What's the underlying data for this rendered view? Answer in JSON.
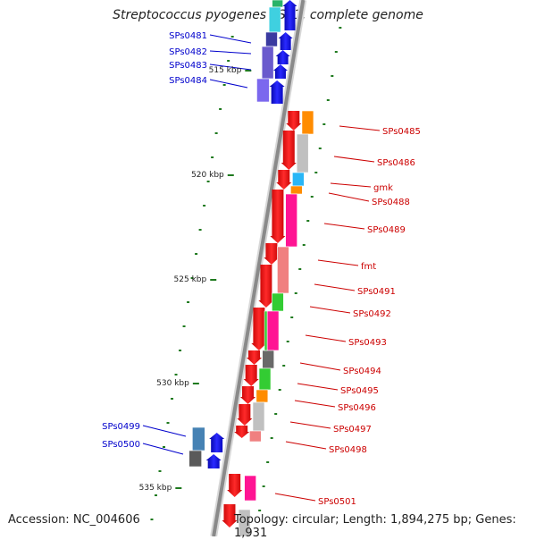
{
  "title": "Streptococcus pyogenes SSI-1, complete genome",
  "footer": {
    "accession": "Accession: NC_004606",
    "summary": "Topology: circular; Length: 1,894,275 bp; Genes: 1,931"
  },
  "colors": {
    "backbone": "#8a8a8a",
    "tick": "#1f7a1f",
    "forward_label": "#0000cc",
    "reverse_label": "#cc0000"
  },
  "scale_labels": [
    "515 kbp",
    "520 kbp",
    "525 kbp",
    "530 kbp",
    "535 kbp"
  ],
  "forward_genes": [
    "SPs0481",
    "SPs0482",
    "SPs0483",
    "SPs0484",
    "SPs0499",
    "SPs0500"
  ],
  "reverse_genes": [
    "SPs0485",
    "SPs0486",
    "gmk",
    "SPs0488",
    "SPs0489",
    "fmt",
    "SPs0491",
    "SPs0492",
    "SPs0493",
    "SPs0494",
    "SPs0495",
    "SPs0496",
    "SPs0497",
    "SPs0498",
    "SPs0501"
  ]
}
